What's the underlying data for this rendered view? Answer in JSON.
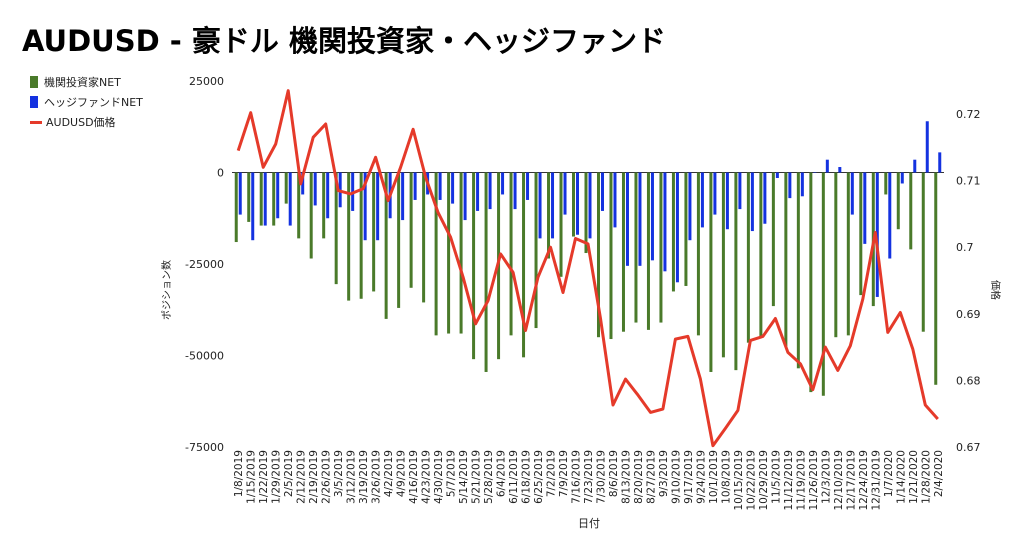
{
  "title": "AUDUSD - 豪ドル 機関投資家・ヘッジファンド",
  "legend": [
    {
      "label": "機関投資家NET",
      "color": "#4a7a2a",
      "kind": "bar"
    },
    {
      "label": "ヘッジファンドNET",
      "color": "#1432e0",
      "kind": "bar"
    },
    {
      "label": "AUDUSD価格",
      "color": "#e53a2a",
      "kind": "line"
    }
  ],
  "chart_data": {
    "type": "bar",
    "title": "AUDUSD - 豪ドル 機関投資家・ヘッジファンド",
    "xlabel": "日付",
    "ylabel": "ポジション数",
    "y2label": "価格",
    "ylim": [
      -75000,
      25000
    ],
    "y2lim": [
      0.67,
      0.72
    ],
    "y_ticks": [
      "25000",
      "0",
      "-25000",
      "-50000",
      "-75000"
    ],
    "y2_ticks": [
      "0.72",
      "0.71",
      "0.7",
      "0.69",
      "0.68",
      "0.67"
    ],
    "grid": false,
    "legend_position": "top-left",
    "categories": [
      "1/8/2019",
      "1/15/2019",
      "1/22/2019",
      "1/29/2019",
      "2/5/2019",
      "2/12/2019",
      "2/19/2019",
      "2/26/2019",
      "3/5/2019",
      "3/12/2019",
      "3/19/2019",
      "3/26/2019",
      "4/2/2019",
      "4/9/2019",
      "4/16/2019",
      "4/23/2019",
      "4/30/2019",
      "5/7/2019",
      "5/14/2019",
      "5/21/2019",
      "5/28/2019",
      "6/4/2019",
      "6/11/2019",
      "6/18/2019",
      "6/25/2019",
      "7/2/2019",
      "7/9/2019",
      "7/16/2019",
      "7/23/2019",
      "7/30/2019",
      "8/6/2019",
      "8/13/2019",
      "8/20/2019",
      "8/27/2019",
      "9/3/2019",
      "9/10/2019",
      "9/17/2019",
      "9/24/2019",
      "10/1/2019",
      "10/8/2019",
      "10/15/2019",
      "10/22/2019",
      "10/29/2019",
      "11/5/2019",
      "11/12/2019",
      "11/19/2019",
      "11/26/2019",
      "12/3/2019",
      "12/10/2019",
      "12/17/2019",
      "12/24/2019",
      "12/31/2019",
      "1/7/2020",
      "1/14/2020",
      "1/21/2020",
      "1/28/2020",
      "2/4/2020"
    ],
    "series": [
      {
        "name": "機関投資家NET",
        "type": "bar",
        "axis": "left",
        "values": [
          -19000,
          -13500,
          -14500,
          -14500,
          -8500,
          -18000,
          -23500,
          -18000,
          -30500,
          -35000,
          -34500,
          -32500,
          -40000,
          -37000,
          -31500,
          -35500,
          -44500,
          -44000,
          -44000,
          -51000,
          -54500,
          -51000,
          -44500,
          -50500,
          -42500,
          -23500,
          -28500,
          -17500,
          -22000,
          -45000,
          -45500,
          -43500,
          -41000,
          -43000,
          -41000,
          -32500,
          -31000,
          -44500,
          -54500,
          -50500,
          -54000,
          -46500,
          -45000,
          -36500,
          -47500,
          -53500,
          -60000,
          -61000,
          -45000,
          -44500,
          -33500,
          -36500,
          -6000,
          -15500,
          -21000,
          -43500,
          -58000
        ]
      },
      {
        "name": "ヘッジファンドNET",
        "type": "bar",
        "axis": "left",
        "values": [
          -11500,
          -18500,
          -14500,
          -12500,
          -14500,
          -6000,
          -9000,
          -12500,
          -9500,
          -10500,
          -18500,
          -18500,
          -12500,
          -13000,
          -7500,
          -6000,
          -7500,
          -8500,
          -13000,
          -10500,
          -10000,
          -6000,
          -10000,
          -7500,
          -18000,
          -18000,
          -11500,
          -17000,
          -18000,
          -10500,
          -15000,
          -25500,
          -25500,
          -24000,
          -27000,
          -30000,
          -18500,
          -15000,
          -11500,
          -15500,
          -10000,
          -16000,
          -14000,
          -1500,
          -7000,
          -6500,
          0,
          3500,
          1500,
          -11500,
          -19500,
          -34000,
          -23500,
          -3000,
          3500,
          14000,
          5500
        ]
      },
      {
        "name": "AUDUSD価格",
        "type": "line",
        "axis": "right",
        "values": [
          0.7145,
          0.7202,
          0.712,
          0.7155,
          0.7235,
          0.7095,
          0.7165,
          0.7185,
          0.7085,
          0.708,
          0.7088,
          0.7135,
          0.707,
          0.712,
          0.7177,
          0.7105,
          0.7052,
          0.7015,
          0.6955,
          0.6885,
          0.692,
          0.699,
          0.6962,
          0.6875,
          0.6955,
          0.7,
          0.6932,
          0.7013,
          0.7005,
          0.6893,
          0.6763,
          0.6802,
          0.6778,
          0.6752,
          0.6757,
          0.6862,
          0.6866,
          0.6802,
          0.6702,
          0.6728,
          0.6755,
          0.686,
          0.6866,
          0.6893,
          0.6842,
          0.6825,
          0.6786,
          0.685,
          0.6815,
          0.6852,
          0.6922,
          0.7022,
          0.6872,
          0.6902,
          0.6847,
          0.6763,
          0.6742
        ]
      }
    ]
  }
}
